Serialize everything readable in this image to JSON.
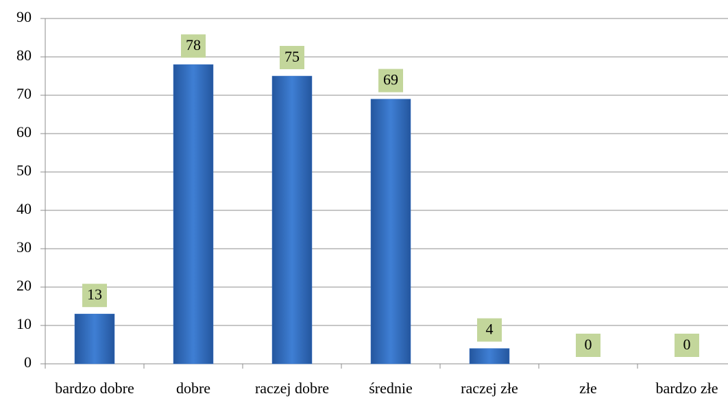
{
  "chart_data": {
    "type": "bar",
    "categories": [
      "bardzo dobre",
      "dobre",
      "raczej dobre",
      "średnie",
      "raczej złe",
      "złe",
      "bardzo złe"
    ],
    "values": [
      13,
      78,
      75,
      69,
      4,
      0,
      0
    ],
    "color": "#3a75c8",
    "label_color": "#c3d69b",
    "ylim": [
      0,
      90
    ],
    "yticks": [
      0,
      10,
      20,
      30,
      40,
      50,
      60,
      70,
      80,
      90
    ],
    "grid": true
  }
}
